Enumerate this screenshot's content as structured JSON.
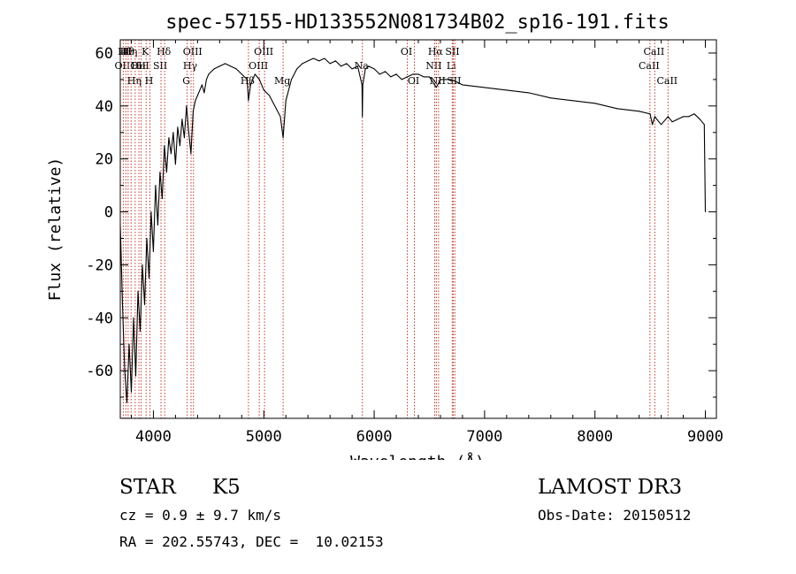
{
  "chart_data": {
    "type": "line",
    "title": "spec-57155-HD133552N081734B02_sp16-191.fits",
    "xlabel": "Wavelength (Å)",
    "ylabel": "Flux (relative)",
    "xlim": [
      3700,
      9100
    ],
    "ylim": [
      -78,
      65
    ],
    "x_ticks": [
      4000,
      5000,
      6000,
      7000,
      8000,
      9000
    ],
    "y_ticks": [
      -60,
      -40,
      -20,
      0,
      20,
      40,
      60
    ],
    "grid": false,
    "series": [
      {
        "name": "flux",
        "x": [
          3700,
          3720,
          3740,
          3760,
          3780,
          3800,
          3820,
          3840,
          3860,
          3880,
          3900,
          3920,
          3940,
          3960,
          3980,
          4000,
          4020,
          4040,
          4060,
          4080,
          4100,
          4120,
          4140,
          4160,
          4180,
          4200,
          4220,
          4240,
          4260,
          4280,
          4300,
          4320,
          4340,
          4360,
          4380,
          4400,
          4420,
          4440,
          4460,
          4480,
          4500,
          4550,
          4600,
          4650,
          4700,
          4750,
          4800,
          4850,
          4861,
          4880,
          4920,
          4960,
          5000,
          5050,
          5100,
          5150,
          5175,
          5200,
          5250,
          5300,
          5350,
          5400,
          5450,
          5500,
          5550,
          5600,
          5650,
          5700,
          5750,
          5800,
          5850,
          5890,
          5893,
          5897,
          5920,
          5950,
          6000,
          6050,
          6100,
          6150,
          6200,
          6250,
          6300,
          6350,
          6400,
          6450,
          6500,
          6563,
          6600,
          6650,
          6700,
          6750,
          6800,
          7000,
          7200,
          7400,
          7600,
          7800,
          8000,
          8200,
          8400,
          8500,
          8520,
          8542,
          8560,
          8600,
          8662,
          8700,
          8800,
          8850,
          8900,
          8950,
          8990,
          9000
        ],
        "values": [
          -5,
          -35,
          -60,
          -72,
          -50,
          -68,
          -40,
          -62,
          -30,
          -45,
          -20,
          -35,
          -10,
          -25,
          0,
          -15,
          10,
          -5,
          15,
          5,
          25,
          15,
          28,
          22,
          30,
          18,
          32,
          25,
          35,
          28,
          40,
          30,
          22,
          38,
          42,
          44,
          46,
          48,
          45,
          50,
          52,
          54,
          55,
          56,
          55,
          54,
          52,
          50,
          42,
          48,
          52,
          50,
          46,
          44,
          40,
          36,
          28,
          42,
          50,
          54,
          56,
          57,
          58,
          57,
          58,
          56,
          57,
          55,
          56,
          54,
          55,
          48,
          36,
          48,
          54,
          55,
          54,
          52,
          53,
          51,
          52,
          50,
          51,
          52,
          52,
          51,
          51,
          47,
          50,
          50,
          50,
          49,
          48,
          47,
          46,
          45,
          43,
          42,
          41,
          39,
          38,
          37,
          33,
          36,
          35,
          33,
          36,
          34,
          36,
          36,
          37,
          35,
          33,
          0
        ]
      }
    ],
    "lines": [
      {
        "x": 3727,
        "label": "OII",
        "row": 2
      },
      {
        "x": 3750,
        "label": "Hθ",
        "row": 1
      },
      {
        "x": 3771,
        "label": "Hθ",
        "row": 1
      },
      {
        "x": 3798,
        "label": "Hη",
        "row": 1
      },
      {
        "x": 3835,
        "label": "Hη",
        "row": 3
      },
      {
        "x": 3869,
        "label": "OII",
        "row": 2
      },
      {
        "x": 3889,
        "label": "HeI",
        "row": 2
      },
      {
        "x": 3934,
        "label": "K",
        "row": 1
      },
      {
        "x": 3969,
        "label": "H",
        "row": 3
      },
      {
        "x": 4069,
        "label": "SII",
        "row": 2
      },
      {
        "x": 4102,
        "label": "Hδ",
        "row": 1
      },
      {
        "x": 4306,
        "label": "G",
        "row": 3
      },
      {
        "x": 4341,
        "label": "Hγ",
        "row": 2
      },
      {
        "x": 4363,
        "label": "OIII",
        "row": 1
      },
      {
        "x": 4861,
        "label": "Hβ",
        "row": 3
      },
      {
        "x": 4959,
        "label": "OIII",
        "row": 2
      },
      {
        "x": 5007,
        "label": "OIII",
        "row": 1
      },
      {
        "x": 5175,
        "label": "Mg",
        "row": 3
      },
      {
        "x": 5893,
        "label": "Na",
        "row": 2
      },
      {
        "x": 6300,
        "label": "OI",
        "row": 1
      },
      {
        "x": 6364,
        "label": "OI",
        "row": 3
      },
      {
        "x": 6548,
        "label": "NII",
        "row": 2
      },
      {
        "x": 6563,
        "label": "Hα",
        "row": 1
      },
      {
        "x": 6583,
        "label": "NII",
        "row": 3
      },
      {
        "x": 6707,
        "label": "Li",
        "row": 2
      },
      {
        "x": 6716,
        "label": "SII",
        "row": 1
      },
      {
        "x": 6731,
        "label": "SII",
        "row": 3
      },
      {
        "x": 8498,
        "label": "CaII",
        "row": 2
      },
      {
        "x": 8542,
        "label": "CaII",
        "row": 1
      },
      {
        "x": 8662,
        "label": "CaII",
        "row": 3
      }
    ]
  },
  "info": {
    "object_class": "STAR",
    "subclass": "K5",
    "survey": "LAMOST DR3",
    "cz": "cz = 0.9 ± 9.7 km/s",
    "obs_date": "Obs-Date: 20150512",
    "coords": "RA = 202.55743, DEC =  10.02153"
  },
  "colors": {
    "line": "#000000",
    "marker": "#c0392b"
  }
}
